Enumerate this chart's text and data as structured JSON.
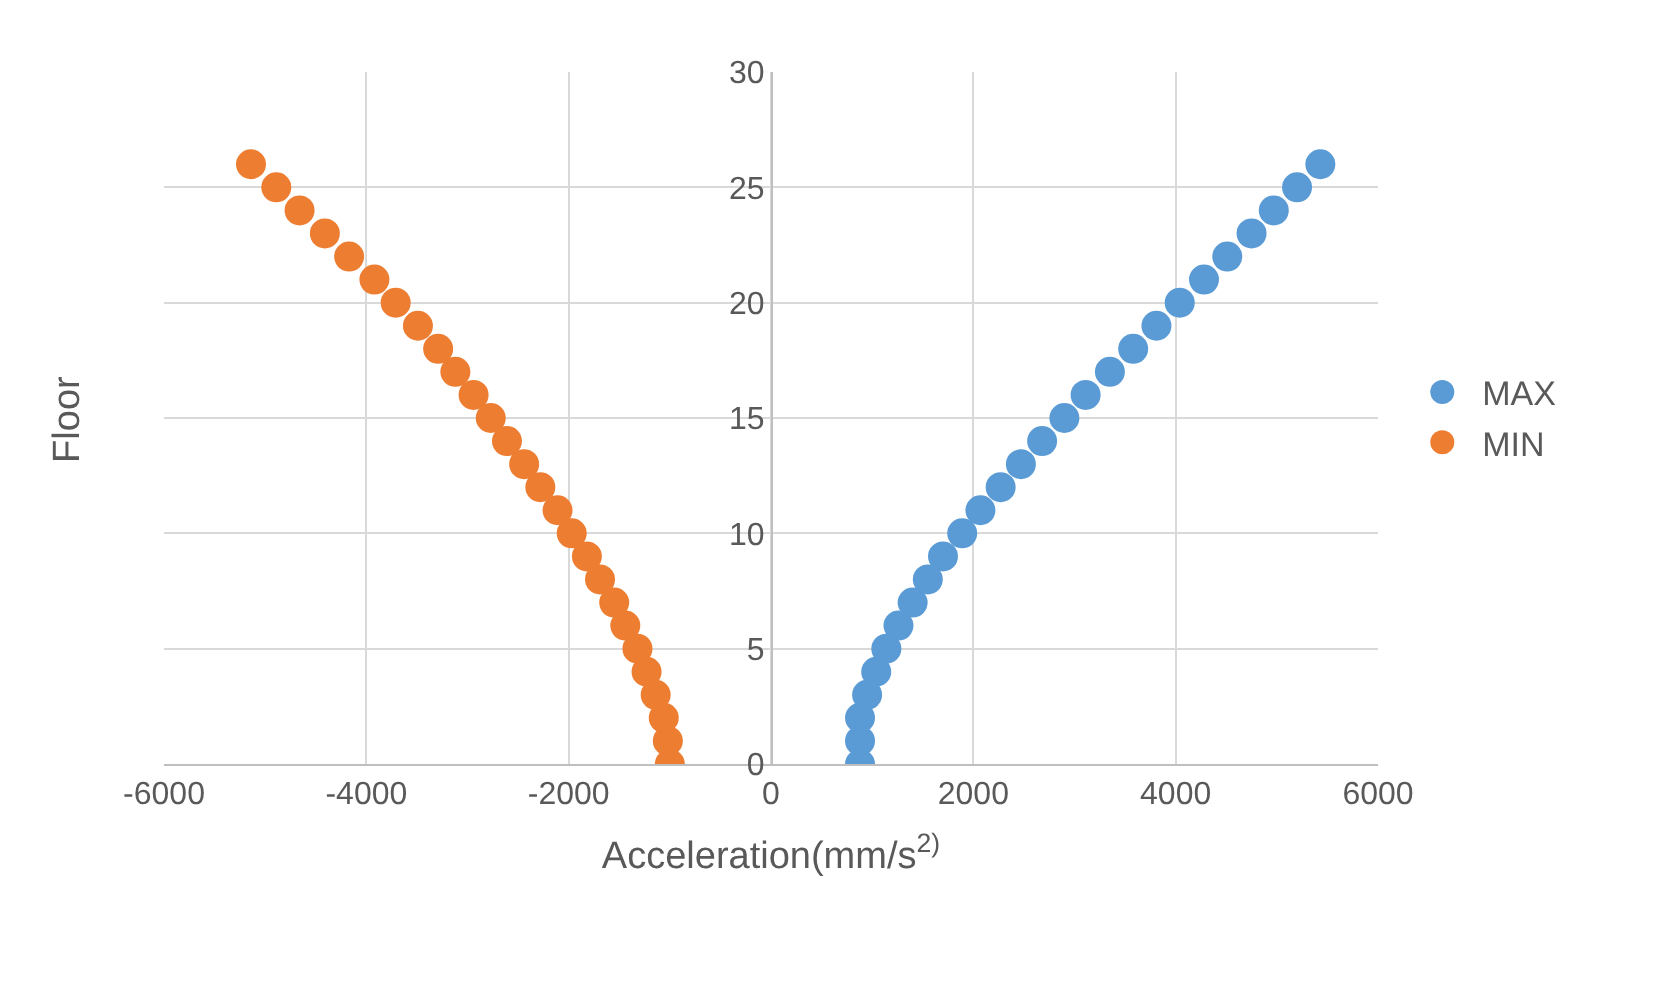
{
  "chart_data": {
    "type": "scatter",
    "xlabel": "Acceleration(mm/s$^{2)}$",
    "ylabel": "Floor",
    "xlim": [
      -6000,
      6000
    ],
    "xticks": [
      -6000,
      -4000,
      -2000,
      0,
      2000,
      4000,
      6000
    ],
    "ylim": [
      0,
      30
    ],
    "yticks": [
      0,
      5,
      10,
      15,
      20,
      25,
      30
    ],
    "grid": true,
    "legend": "right",
    "marker": "circle",
    "series": [
      {
        "name": "MAX",
        "color": "#5b9bd5",
        "x": [
          880,
          880,
          880,
          950,
          1040,
          1140,
          1260,
          1400,
          1550,
          1700,
          1890,
          2070,
          2270,
          2470,
          2680,
          2900,
          3110,
          3350,
          3580,
          3810,
          4040,
          4280,
          4510,
          4750,
          4970,
          5200,
          5430
        ],
        "values": [
          0,
          1,
          2,
          3,
          4,
          5,
          6,
          7,
          8,
          9,
          10,
          11,
          12,
          13,
          14,
          15,
          16,
          17,
          18,
          19,
          20,
          21,
          22,
          23,
          24,
          25,
          26
        ]
      },
      {
        "name": "MIN",
        "color": "#ed7d31",
        "x": [
          -1000,
          -1020,
          -1060,
          -1140,
          -1230,
          -1320,
          -1440,
          -1550,
          -1690,
          -1820,
          -1970,
          -2110,
          -2280,
          -2440,
          -2610,
          -2770,
          -2940,
          -3120,
          -3290,
          -3490,
          -3710,
          -3920,
          -4170,
          -4410,
          -4660,
          -4890,
          -5140
        ],
        "values": [
          0,
          1,
          2,
          3,
          4,
          5,
          6,
          7,
          8,
          9,
          10,
          11,
          12,
          13,
          14,
          15,
          16,
          17,
          18,
          19,
          20,
          21,
          22,
          23,
          24,
          25,
          26
        ]
      }
    ]
  }
}
